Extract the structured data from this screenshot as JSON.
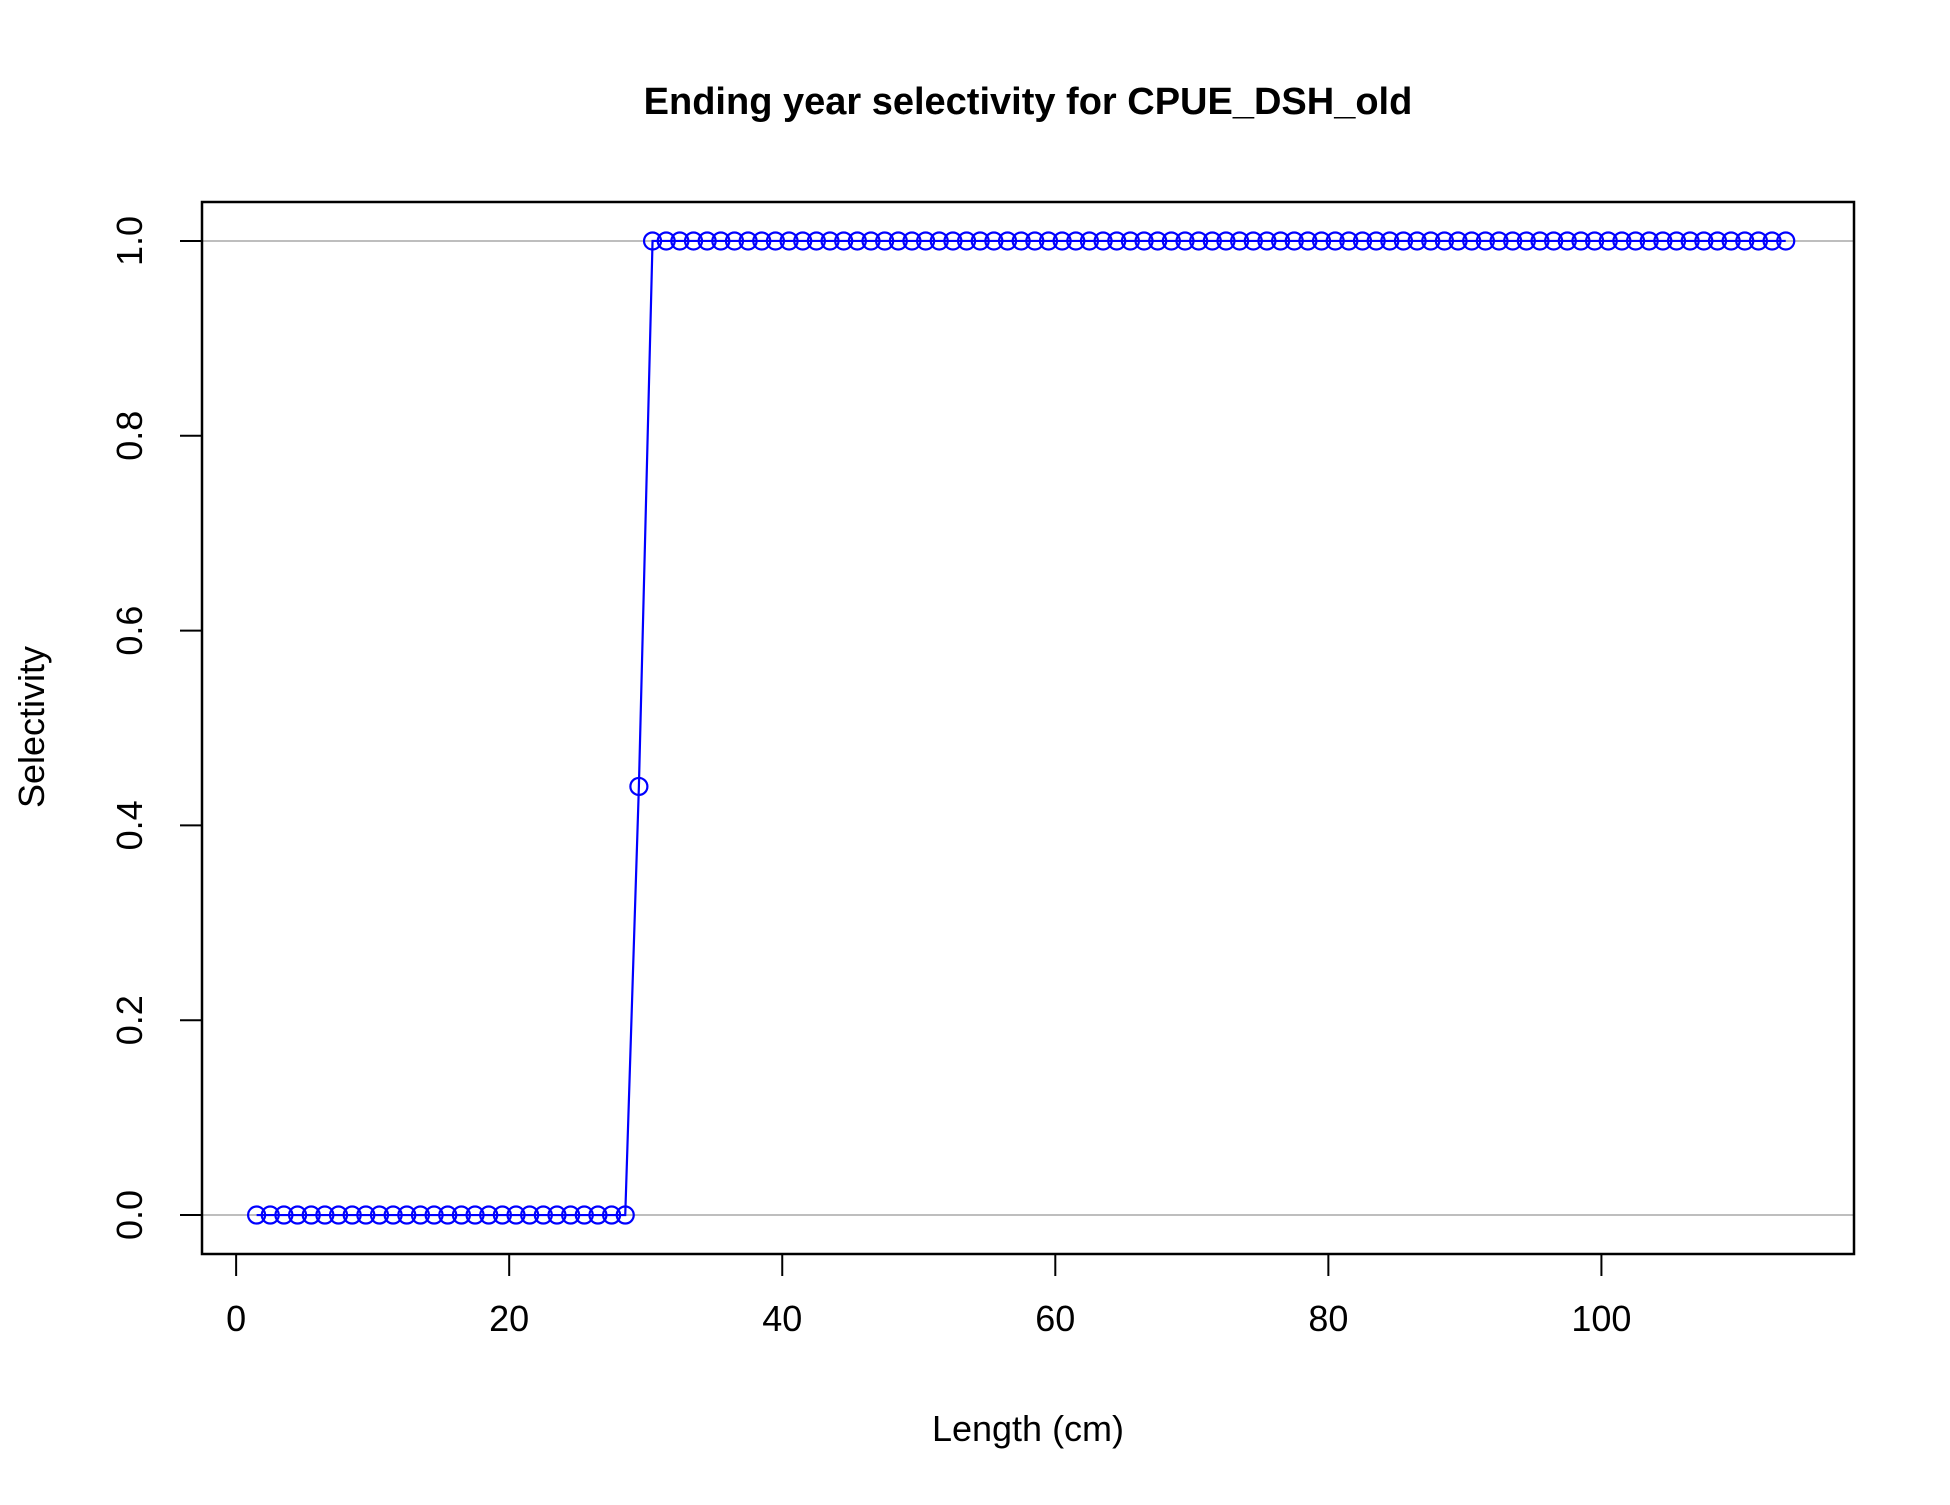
{
  "chart_data": {
    "type": "line",
    "title": "Ending year selectivity for CPUE_DSH_old",
    "xlabel": "Length (cm)",
    "ylabel": "Selectivity",
    "xlim": [
      -2.5,
      118.5
    ],
    "ylim": [
      -0.04,
      1.04
    ],
    "xticks": [
      0,
      20,
      40,
      60,
      80,
      100
    ],
    "yticks": [
      0.0,
      0.2,
      0.4,
      0.6,
      0.8,
      1.0
    ],
    "xtick_labels": [
      "0",
      "20",
      "40",
      "60",
      "80",
      "100"
    ],
    "ytick_labels": [
      "0.0",
      "0.2",
      "0.4",
      "0.6",
      "0.8",
      "1.0"
    ],
    "reference_lines_y": [
      0,
      1
    ],
    "grid": false,
    "series": [
      {
        "color": "#0000ff",
        "marker": "open-circle",
        "x": [
          1.5,
          2.5,
          3.5,
          4.5,
          5.5,
          6.5,
          7.5,
          8.5,
          9.5,
          10.5,
          11.5,
          12.5,
          13.5,
          14.5,
          15.5,
          16.5,
          17.5,
          18.5,
          19.5,
          20.5,
          21.5,
          22.5,
          23.5,
          24.5,
          25.5,
          26.5,
          27.5,
          28.5,
          29.5,
          30.5,
          31.5,
          32.5,
          33.5,
          34.5,
          35.5,
          36.5,
          37.5,
          38.5,
          39.5,
          40.5,
          41.5,
          42.5,
          43.5,
          44.5,
          45.5,
          46.5,
          47.5,
          48.5,
          49.5,
          50.5,
          51.5,
          52.5,
          53.5,
          54.5,
          55.5,
          56.5,
          57.5,
          58.5,
          59.5,
          60.5,
          61.5,
          62.5,
          63.5,
          64.5,
          65.5,
          66.5,
          67.5,
          68.5,
          69.5,
          70.5,
          71.5,
          72.5,
          73.5,
          74.5,
          75.5,
          76.5,
          77.5,
          78.5,
          79.5,
          80.5,
          81.5,
          82.5,
          83.5,
          84.5,
          85.5,
          86.5,
          87.5,
          88.5,
          89.5,
          90.5,
          91.5,
          92.5,
          93.5,
          94.5,
          95.5,
          96.5,
          97.5,
          98.5,
          99.5,
          100.5,
          101.5,
          102.5,
          103.5,
          104.5,
          105.5,
          106.5,
          107.5,
          108.5,
          109.5,
          110.5,
          111.5,
          112.5,
          113.5
        ],
        "y": [
          0,
          0,
          0,
          0,
          0,
          0,
          0,
          0,
          0,
          0,
          0,
          0,
          0,
          0,
          0,
          0,
          0,
          0,
          0,
          0,
          0,
          0,
          0,
          0,
          0,
          0,
          0,
          0,
          0.44,
          1,
          1,
          1,
          1,
          1,
          1,
          1,
          1,
          1,
          1,
          1,
          1,
          1,
          1,
          1,
          1,
          1,
          1,
          1,
          1,
          1,
          1,
          1,
          1,
          1,
          1,
          1,
          1,
          1,
          1,
          1,
          1,
          1,
          1,
          1,
          1,
          1,
          1,
          1,
          1,
          1,
          1,
          1,
          1,
          1,
          1,
          1,
          1,
          1,
          1,
          1,
          1,
          1,
          1,
          1,
          1,
          1,
          1,
          1,
          1,
          1,
          1,
          1,
          1,
          1,
          1,
          1,
          1,
          1,
          1,
          1,
          1,
          1,
          1,
          1,
          1,
          1,
          1,
          1,
          1,
          1,
          1,
          1,
          1
        ]
      }
    ]
  }
}
